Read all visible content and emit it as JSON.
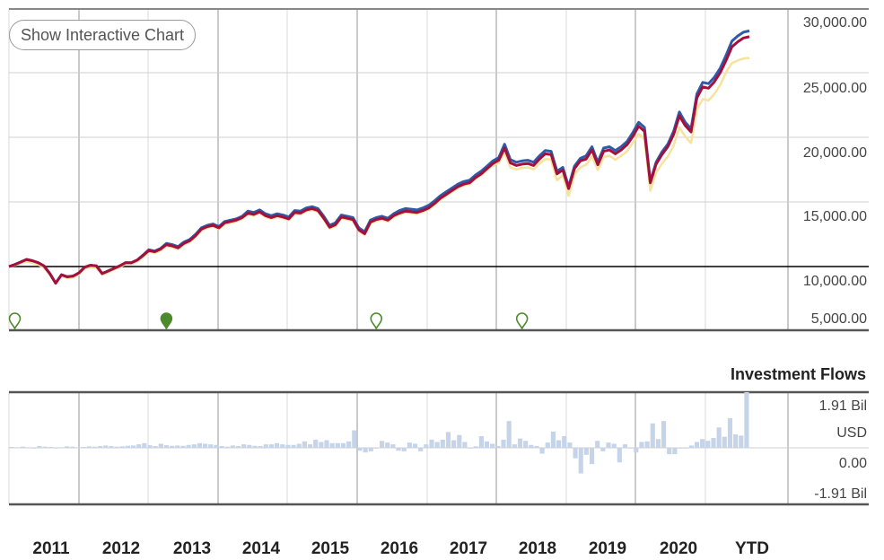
{
  "controls": {
    "interactive_button_label": "Show Interactive Chart"
  },
  "chart_data": [
    {
      "type": "line",
      "title": "",
      "ylim": [
        5000,
        30000
      ],
      "y_ticks": [
        30000,
        25000,
        20000,
        15000,
        10000,
        5000
      ],
      "y_tick_labels": [
        "30,000.00",
        "25,000.00",
        "20,000.00",
        "15,000.00",
        "10,000.00",
        "5,000.00"
      ],
      "baseline": 10000,
      "x_ticks": [
        "2011",
        "2012",
        "2013",
        "2014",
        "2015",
        "2016",
        "2017",
        "2018",
        "2019",
        "2020",
        "YTD"
      ],
      "series": [
        {
          "color": "#2e5aa8",
          "values": [
            10000,
            10150,
            10350,
            10550,
            10450,
            10300,
            10050,
            9450,
            8700,
            9350,
            9200,
            9250,
            9500,
            9950,
            10100,
            10050,
            9450,
            9650,
            9850,
            10050,
            10300,
            10300,
            10500,
            10900,
            11300,
            11200,
            11400,
            11800,
            11700,
            11550,
            11900,
            12100,
            12500,
            13000,
            13200,
            13300,
            13100,
            13500,
            13600,
            13700,
            13900,
            14300,
            14200,
            14400,
            14100,
            13950,
            14100,
            14000,
            13850,
            14350,
            14300,
            14550,
            14650,
            14500,
            13900,
            13200,
            13400,
            14000,
            13900,
            13800,
            13000,
            12700,
            13600,
            13800,
            13900,
            13750,
            14100,
            14350,
            14500,
            14450,
            14400,
            14550,
            14750,
            15100,
            15500,
            15800,
            16100,
            16400,
            16600,
            16700,
            17100,
            17400,
            17800,
            18200,
            18450,
            19500,
            18300,
            18100,
            18200,
            18250,
            18100,
            18600,
            19000,
            18950,
            17400,
            17700,
            16200,
            17800,
            18400,
            18600,
            19300,
            18100,
            19200,
            19300,
            19000,
            19300,
            19700,
            20400,
            21200,
            20800,
            16600,
            18100,
            18900,
            19500,
            20500,
            22000,
            21200,
            20700,
            23400,
            24300,
            24200,
            24700,
            25400,
            26400,
            27500,
            27900,
            28200,
            28300
          ]
        },
        {
          "color": "#a50f3c",
          "values": [
            10000,
            10150,
            10350,
            10550,
            10450,
            10300,
            10050,
            9450,
            8700,
            9350,
            9200,
            9250,
            9500,
            9950,
            10100,
            10050,
            9450,
            9650,
            9850,
            10050,
            10300,
            10300,
            10500,
            10850,
            11250,
            11150,
            11350,
            11700,
            11600,
            11450,
            11800,
            12000,
            12400,
            12900,
            13100,
            13200,
            13000,
            13400,
            13500,
            13600,
            13800,
            14150,
            14050,
            14250,
            13950,
            13800,
            13950,
            13850,
            13700,
            14200,
            14150,
            14400,
            14500,
            14350,
            13750,
            13050,
            13250,
            13850,
            13750,
            13650,
            12850,
            12550,
            13450,
            13650,
            13750,
            13600,
            13950,
            14150,
            14300,
            14250,
            14200,
            14350,
            14550,
            14900,
            15300,
            15600,
            15900,
            16200,
            16400,
            16500,
            16900,
            17200,
            17600,
            18000,
            18250,
            19200,
            18050,
            17850,
            17950,
            18000,
            17850,
            18350,
            18750,
            18700,
            17200,
            17500,
            16050,
            17600,
            18200,
            18350,
            19050,
            17900,
            18950,
            19050,
            18750,
            19050,
            19450,
            20100,
            20900,
            20500,
            16500,
            17950,
            18700,
            19300,
            20250,
            21700,
            20950,
            20450,
            23100,
            23950,
            23850,
            24350,
            25050,
            26000,
            27050,
            27450,
            27750,
            27850
          ]
        },
        {
          "color": "#f6e3a0",
          "values": [
            10000,
            10100,
            10250,
            10400,
            10300,
            10150,
            9900,
            9350,
            8650,
            9250,
            9100,
            9150,
            9400,
            9850,
            9950,
            9900,
            9350,
            9550,
            9750,
            9950,
            10200,
            10200,
            10400,
            10750,
            11150,
            11050,
            11250,
            11600,
            11500,
            11350,
            11700,
            11900,
            12300,
            12800,
            13000,
            13100,
            12900,
            13300,
            13400,
            13500,
            13700,
            14050,
            13950,
            14150,
            13850,
            13700,
            13850,
            13750,
            13600,
            14100,
            14050,
            14300,
            14400,
            14250,
            13650,
            12950,
            13150,
            13750,
            13650,
            13550,
            12750,
            12450,
            13350,
            13550,
            13650,
            13500,
            13850,
            14050,
            14200,
            14150,
            14100,
            14250,
            14450,
            14800,
            15200,
            15500,
            15800,
            16100,
            16300,
            16400,
            16800,
            17100,
            17500,
            17850,
            18050,
            18850,
            17700,
            17550,
            17650,
            17700,
            17550,
            18000,
            18350,
            18300,
            16700,
            17100,
            15500,
            17150,
            17700,
            17900,
            18550,
            17500,
            18500,
            18600,
            18300,
            18600,
            18950,
            19600,
            20300,
            19900,
            15900,
            17300,
            18000,
            18550,
            19400,
            20800,
            20100,
            19600,
            22200,
            23000,
            22900,
            23400,
            24100,
            25100,
            25800,
            26000,
            26150,
            26200
          ]
        }
      ],
      "markers": [
        {
          "x_index": 1,
          "filled": false
        },
        {
          "x_index": 27,
          "filled": true
        },
        {
          "x_index": 63,
          "filled": false
        },
        {
          "x_index": 88,
          "filled": false
        }
      ]
    },
    {
      "type": "bar",
      "title": "Investment Flows",
      "ylim": [
        -1.91,
        1.91
      ],
      "y_tick_labels": [
        "1.91 Bil",
        "USD",
        "0.00",
        "-1.91 Bil"
      ],
      "unit": "Bil USD",
      "values": [
        0.03,
        0.02,
        0.04,
        0.02,
        0.0,
        0.06,
        0.04,
        0.03,
        0.0,
        0.02,
        0.05,
        0.04,
        0.02,
        0.03,
        0.05,
        0.04,
        0.06,
        0.08,
        0.06,
        0.04,
        0.05,
        0.07,
        0.08,
        0.12,
        0.16,
        0.09,
        0.06,
        0.14,
        0.09,
        0.07,
        0.08,
        0.07,
        0.1,
        0.12,
        0.16,
        0.14,
        0.12,
        0.1,
        0.06,
        0.04,
        0.08,
        0.06,
        0.12,
        0.1,
        0.07,
        0.06,
        0.12,
        0.12,
        0.16,
        0.12,
        0.1,
        0.1,
        0.14,
        0.22,
        0.12,
        0.28,
        0.2,
        0.26,
        0.16,
        0.16,
        0.16,
        0.22,
        0.6,
        -0.1,
        -0.16,
        -0.12,
        0.0,
        0.24,
        0.18,
        0.12,
        -0.1,
        -0.12,
        0.18,
        0.14,
        -0.12,
        0.12,
        0.28,
        0.2,
        0.28,
        0.54,
        0.26,
        0.44,
        0.2,
        0.0,
        0.05,
        0.4,
        0.22,
        0.14,
        0.06,
        0.28,
        0.92,
        0.12,
        0.32,
        0.24,
        0.1,
        0.06,
        -0.2,
        0.18,
        0.56,
        0.26,
        0.4,
        0.18,
        -0.36,
        -0.88,
        -0.24,
        -0.56,
        0.24,
        -0.12,
        0.18,
        0.14,
        -0.5,
        0.12,
        0.0,
        -0.16,
        0.2,
        0.22,
        0.84,
        0.3,
        0.92,
        -0.22,
        -0.22,
        0.0,
        0.0,
        0.08,
        0.2,
        0.3,
        0.24,
        0.34,
        0.7,
        0.38,
        1.02,
        0.46,
        0.42,
        1.91
      ]
    }
  ]
}
